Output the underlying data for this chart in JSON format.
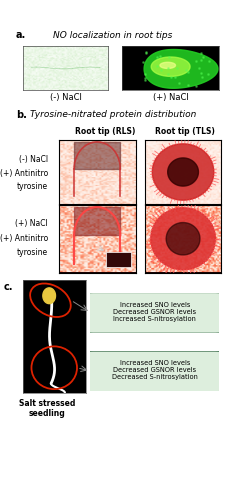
{
  "fig_width": 2.26,
  "fig_height": 5.0,
  "dpi": 100,
  "bg_color": "#ffffff",
  "panel_a": {
    "label": "a.",
    "title": "NO localization in root tips",
    "left_caption": "(-) NaCl",
    "right_caption": "(+) NaCl"
  },
  "panel_b": {
    "label": "b.",
    "title": "Tyrosine-nitrated protein distribution",
    "col1_header": "Root tip (RLS)",
    "col2_header": "Root tip (TLS)",
    "row1_label1": "(-) NaCl",
    "row1_label2": "(+) Antinitro",
    "row1_label3": "tyrosine",
    "row2_label1": "(+) NaCl",
    "row2_label2": "(+) Antinitro",
    "row2_label3": "tyrosine"
  },
  "panel_c": {
    "label": "c.",
    "box1_text": "Increased SNO levels\nDecreased GSNOR levels\nIncreased S-nitrosylation",
    "box2_text": "Increased SNO levels\nDecreased GSNOR levels\nDecreased S-nitrosylation",
    "box_facecolor": "#ddeedd",
    "box_edgecolor": "#336644",
    "ellipse_color": "#dd2200",
    "caption": "Salt stressed\nseedling"
  }
}
